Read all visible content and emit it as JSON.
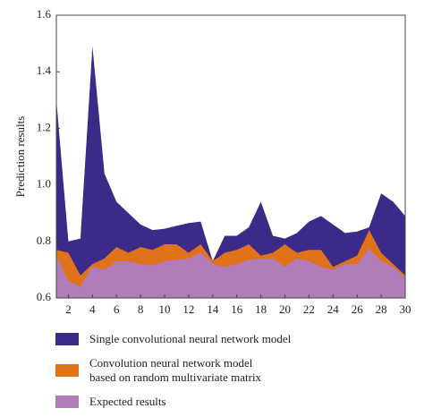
{
  "chart_data": {
    "type": "area",
    "y_label": "Prediction results",
    "x": [
      1,
      2,
      3,
      4,
      5,
      6,
      7,
      8,
      9,
      10,
      11,
      12,
      13,
      14,
      15,
      16,
      17,
      18,
      19,
      20,
      21,
      22,
      23,
      24,
      25,
      26,
      27,
      28,
      29,
      30
    ],
    "series": [
      {
        "name": "Single convolutional neural network model",
        "color": "#3b2a88",
        "values": [
          1.3,
          0.8,
          0.81,
          1.49,
          1.04,
          0.94,
          0.9,
          0.86,
          0.84,
          0.845,
          0.855,
          0.865,
          0.87,
          0.73,
          0.82,
          0.82,
          0.85,
          0.94,
          0.82,
          0.81,
          0.83,
          0.87,
          0.89,
          0.86,
          0.83,
          0.835,
          0.85,
          0.97,
          0.94,
          0.89
        ]
      },
      {
        "name": "Convolution neural network model\nbased on random multivariate matrix",
        "color": "#e0731a",
        "values": [
          0.77,
          0.76,
          0.68,
          0.72,
          0.74,
          0.78,
          0.76,
          0.78,
          0.77,
          0.79,
          0.79,
          0.76,
          0.79,
          0.73,
          0.76,
          0.77,
          0.79,
          0.75,
          0.76,
          0.79,
          0.76,
          0.77,
          0.77,
          0.71,
          0.73,
          0.75,
          0.84,
          0.76,
          0.72,
          0.68
        ]
      },
      {
        "name": "Expected results",
        "color": "#b27cba",
        "values": [
          0.75,
          0.66,
          0.64,
          0.71,
          0.7,
          0.73,
          0.73,
          0.72,
          0.715,
          0.73,
          0.735,
          0.74,
          0.76,
          0.72,
          0.71,
          0.72,
          0.735,
          0.74,
          0.74,
          0.71,
          0.74,
          0.73,
          0.71,
          0.7,
          0.72,
          0.72,
          0.775,
          0.73,
          0.71,
          0.67
        ]
      }
    ],
    "xlim": [
      1,
      30
    ],
    "xticks": [
      2,
      4,
      6,
      8,
      10,
      12,
      14,
      16,
      18,
      20,
      22,
      24,
      26,
      28,
      30
    ],
    "ylim": [
      0.6,
      1.6
    ],
    "yticks": [
      0.6,
      0.8,
      {
        "value": 1,
        "label": "1.0"
      },
      1.2,
      1.4,
      1.6
    ]
  }
}
